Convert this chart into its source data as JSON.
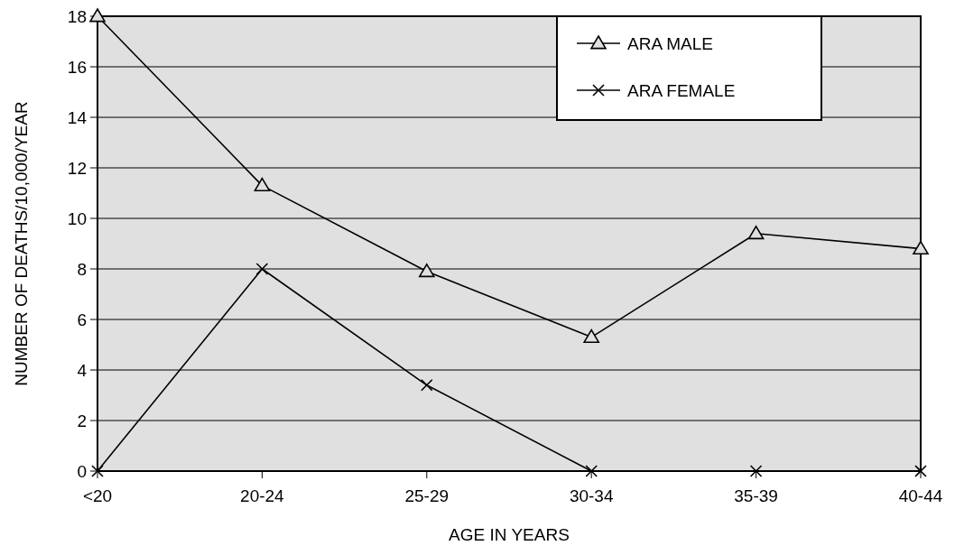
{
  "chart_data": {
    "type": "line",
    "xlabel": "AGE IN YEARS",
    "ylabel": "NUMBER OF DEATHS/10,000/YEAR",
    "categories": [
      "<20",
      "20-24",
      "25-29",
      "30-34",
      "35-39",
      "40-44"
    ],
    "series": [
      {
        "name": "ARA MALE",
        "color": "#000000",
        "marker": "triangle",
        "values": [
          18,
          11.3,
          7.9,
          5.3,
          9.4,
          8.8
        ]
      },
      {
        "name": "ARA FEMALE",
        "color": "#000000",
        "marker": "cross",
        "values": [
          0,
          8,
          3.4,
          0,
          0,
          0
        ]
      }
    ],
    "ylim": [
      0,
      18
    ],
    "yticks": [
      0,
      2,
      4,
      6,
      8,
      10,
      12,
      14,
      16,
      18
    ],
    "grid": "y",
    "legend": "top right",
    "line_style": "solid"
  }
}
